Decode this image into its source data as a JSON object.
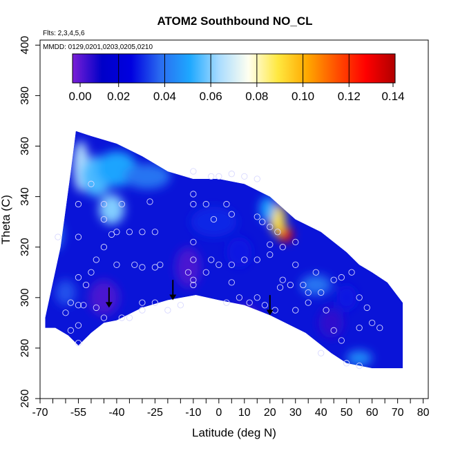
{
  "chart_data": {
    "type": "heatmap",
    "title": "ATOM2 Southbound NO_CL",
    "xlabel": "Latitude (deg N)",
    "ylabel": "Theta (C)",
    "xlim": [
      -70,
      82
    ],
    "ylim": [
      260,
      402
    ],
    "xticks": [
      -70,
      -55,
      -40,
      -25,
      -10,
      0,
      10,
      20,
      30,
      40,
      50,
      60,
      70,
      80
    ],
    "xticks_minor": [
      -65,
      -60,
      -50,
      -45,
      -35,
      -30,
      -20,
      -15,
      -5,
      5,
      15,
      25,
      35,
      45,
      55,
      65,
      75
    ],
    "yticks": [
      260,
      280,
      300,
      320,
      340,
      360,
      380,
      400
    ],
    "annotations": [
      "Flts: 2,3,4,5,6",
      "MMDD: 0129,0201,0203,0205,0210"
    ],
    "colorbar": {
      "min": 0,
      "max": 0.14,
      "ticks": [
        "0.00",
        "0.02",
        "0.04",
        "0.06",
        "0.08",
        "0.10",
        "0.12",
        "0.14"
      ],
      "colors": [
        "#7a1fd6",
        "#0000c8",
        "#0000e0",
        "#2a6cf0",
        "#1ea8ff",
        "#aadcff",
        "#fffff0",
        "#ffe840",
        "#ffa800",
        "#ff5000",
        "#ff0000",
        "#b00000"
      ]
    },
    "domain_top": [
      [
        -56,
        366
      ],
      [
        -50,
        364
      ],
      [
        -40,
        361
      ],
      [
        -30,
        356
      ],
      [
        -20,
        350
      ],
      [
        -10,
        347
      ],
      [
        0,
        347
      ],
      [
        10,
        345
      ],
      [
        20,
        340
      ],
      [
        30,
        331
      ],
      [
        40,
        326
      ],
      [
        50,
        318
      ],
      [
        55,
        313
      ],
      [
        60,
        310
      ],
      [
        66,
        306
      ],
      [
        72,
        298
      ]
    ],
    "domain_bottom": [
      [
        72,
        272
      ],
      [
        60,
        272
      ],
      [
        50,
        274
      ],
      [
        44,
        278
      ],
      [
        34,
        286
      ],
      [
        28,
        289
      ],
      [
        20,
        293
      ],
      [
        10,
        297
      ],
      [
        0,
        299
      ],
      [
        -9,
        301
      ],
      [
        -20,
        299
      ],
      [
        -30,
        296
      ],
      [
        -40,
        291
      ],
      [
        -45,
        290
      ],
      [
        -50,
        286
      ],
      [
        -55,
        281
      ],
      [
        -59,
        285
      ],
      [
        -64,
        288
      ],
      [
        -68,
        288
      ],
      [
        -68,
        292
      ],
      [
        -62,
        320
      ],
      [
        -58,
        350
      ]
    ],
    "blobs": [
      {
        "x": -54,
        "y": 352,
        "rx": 3,
        "ry": 10,
        "value": 0.065
      },
      {
        "x": -48,
        "y": 348,
        "rx": 6,
        "ry": 8,
        "value": 0.055
      },
      {
        "x": -40,
        "y": 351,
        "rx": 8,
        "ry": 7,
        "value": 0.05
      },
      {
        "x": -28,
        "y": 348,
        "rx": 9,
        "ry": 5,
        "value": 0.04
      },
      {
        "x": -42,
        "y": 335,
        "rx": 5,
        "ry": 6,
        "value": 0.06
      },
      {
        "x": 26,
        "y": 325,
        "rx": 3,
        "ry": 3,
        "value": 0.13
      },
      {
        "x": 23,
        "y": 331,
        "rx": 3,
        "ry": 6,
        "value": 0.09
      },
      {
        "x": 19,
        "y": 335,
        "rx": 3,
        "ry": 5,
        "value": 0.05
      },
      {
        "x": 38,
        "y": 305,
        "rx": 6,
        "ry": 4,
        "value": 0.04
      },
      {
        "x": 55,
        "y": 276,
        "rx": 5,
        "ry": 3,
        "value": 0.045
      },
      {
        "x": -64,
        "y": 325,
        "rx": 3,
        "ry": 6,
        "value": 0.04
      },
      {
        "x": -60,
        "y": 302,
        "rx": 4,
        "ry": 5,
        "value": 0.035
      },
      {
        "x": -45,
        "y": 300,
        "rx": 6,
        "ry": 7,
        "value": 0.005
      },
      {
        "x": -12,
        "y": 312,
        "rx": 5,
        "ry": 8,
        "value": 0.005
      },
      {
        "x": 10,
        "y": 292,
        "rx": 6,
        "ry": 5,
        "value": 0.005
      },
      {
        "x": 44,
        "y": 290,
        "rx": 5,
        "ry": 6,
        "value": 0.008
      },
      {
        "x": -2,
        "y": 330,
        "rx": 9,
        "ry": 6,
        "value": 0.03
      },
      {
        "x": 8,
        "y": 318,
        "rx": 5,
        "ry": 6,
        "value": 0.028
      },
      {
        "x": 50,
        "y": 300,
        "rx": 4,
        "ry": 5,
        "value": 0.028
      }
    ],
    "arrows": [
      [
        -43,
        300
      ],
      [
        -18,
        303
      ],
      [
        20,
        297
      ]
    ],
    "points": [
      [
        -55,
        337
      ],
      [
        -50,
        345
      ],
      [
        -45,
        337
      ],
      [
        -42,
        325
      ],
      [
        -40,
        326
      ],
      [
        -45,
        331
      ],
      [
        -35,
        326
      ],
      [
        -30,
        326
      ],
      [
        -27,
        338
      ],
      [
        -25,
        326
      ],
      [
        -38,
        337
      ],
      [
        -45,
        320
      ],
      [
        -55,
        324
      ],
      [
        -48,
        315
      ],
      [
        -50,
        310
      ],
      [
        -40,
        313
      ],
      [
        -33,
        313
      ],
      [
        -30,
        312
      ],
      [
        -25,
        312
      ],
      [
        -23,
        313
      ],
      [
        -55,
        308
      ],
      [
        -52,
        305
      ],
      [
        -58,
        298
      ],
      [
        -55,
        297
      ],
      [
        -53,
        297
      ],
      [
        -48,
        296
      ],
      [
        -45,
        292
      ],
      [
        -38,
        292
      ],
      [
        -30,
        295
      ],
      [
        -25,
        298
      ],
      [
        -55,
        289
      ],
      [
        -60,
        294
      ],
      [
        -63,
        324
      ],
      [
        -10,
        350
      ],
      [
        -3,
        348
      ],
      [
        0,
        348
      ],
      [
        5,
        349
      ],
      [
        10,
        348
      ],
      [
        15,
        347
      ],
      [
        -10,
        341
      ],
      [
        -10,
        337
      ],
      [
        -5,
        337
      ],
      [
        3,
        337
      ],
      [
        -2,
        331
      ],
      [
        5,
        333
      ],
      [
        15,
        332
      ],
      [
        17,
        330
      ],
      [
        20,
        328
      ],
      [
        23,
        326
      ],
      [
        -10,
        322
      ],
      [
        -10,
        315
      ],
      [
        -3,
        315
      ],
      [
        0,
        313
      ],
      [
        5,
        313
      ],
      [
        10,
        315
      ],
      [
        15,
        315
      ],
      [
        20,
        317
      ],
      [
        20,
        321
      ],
      [
        25,
        320
      ],
      [
        30,
        322
      ],
      [
        -12,
        310
      ],
      [
        -10,
        307
      ],
      [
        -10,
        305
      ],
      [
        -5,
        310
      ],
      [
        5,
        306
      ],
      [
        8,
        300
      ],
      [
        3,
        298
      ],
      [
        12,
        298
      ],
      [
        15,
        300
      ],
      [
        18,
        297
      ],
      [
        22,
        295
      ],
      [
        25,
        307
      ],
      [
        28,
        305
      ],
      [
        30,
        313
      ],
      [
        33,
        305
      ],
      [
        35,
        302
      ],
      [
        38,
        310
      ],
      [
        40,
        302
      ],
      [
        45,
        307
      ],
      [
        48,
        308
      ],
      [
        52,
        310
      ],
      [
        55,
        300
      ],
      [
        58,
        296
      ],
      [
        60,
        290
      ],
      [
        63,
        288
      ],
      [
        42,
        295
      ],
      [
        45,
        287
      ],
      [
        48,
        283
      ],
      [
        55,
        288
      ],
      [
        50,
        274
      ],
      [
        55,
        273
      ],
      [
        -55,
        282
      ],
      [
        -58,
        287
      ],
      [
        -30,
        298
      ],
      [
        -20,
        295
      ],
      [
        -15,
        297
      ],
      [
        35,
        298
      ],
      [
        30,
        295
      ],
      [
        -35,
        292
      ],
      [
        24,
        304
      ],
      [
        40,
        278
      ]
    ]
  }
}
